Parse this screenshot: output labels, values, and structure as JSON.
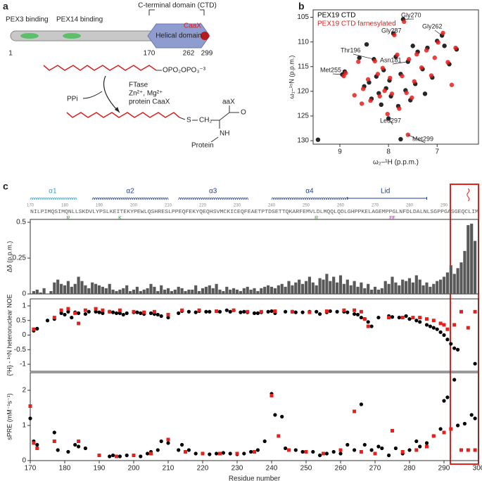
{
  "panel_a": {
    "label": "a",
    "regions": [
      "PEX3 binding",
      "PEX14 binding"
    ],
    "domain": "C-terminal domain (CTD)",
    "helical": "Helical domain",
    "motif": "CaaX",
    "positions": [
      "1",
      "170",
      "262",
      "299"
    ],
    "reaction": {
      "leaving_group": "OPO₂OPO₃⁻³",
      "enzyme": "FTase",
      "cofactors": "Zn²⁺, Mg²⁺",
      "substrate": "protein CaaX",
      "byproduct": "PPi",
      "product_labels": [
        "S",
        "CH₂",
        "aaX",
        "O",
        "NH",
        "Protein"
      ]
    }
  },
  "panel_b": {
    "label": "b"
  },
  "panel_c": {
    "label": "c",
    "elements": [
      "α1",
      "α2",
      "α3",
      "α4",
      "Lid"
    ],
    "sequence": "NILPIMQSIMQNLLSKDVLYPSLKEITEKYPEWLQSHRESLPPEQFEKYQEQHSVMCKICEQFEAETPTDSETTQKARFEMVLDLMQQLQDLGHPPKELAGEMPPGLNFDLDALNLSGPPGASGEQCLIM",
    "seq_ticks": [
      170,
      180,
      190,
      200,
      210,
      220,
      230,
      240,
      250,
      260,
      270,
      280,
      290
    ],
    "mutations": [
      "R",
      "K",
      "R",
      "FF"
    ]
  },
  "chart_data": [
    {
      "type": "scatter",
      "xlabel": "ω₂–¹H (p.p.m.)",
      "ylabel": "ω₁–¹⁵N (p.p.m.)",
      "xlim": [
        9.55,
        6.15
      ],
      "ylim": [
        130.7,
        103.5
      ],
      "xticks": [
        9,
        8,
        7
      ],
      "yticks": [
        105,
        110,
        115,
        120,
        125,
        130
      ],
      "legend": "upper left",
      "annotations": [
        "Gly270",
        "Gly287",
        "Gly262",
        "Thr196",
        "Asn181",
        "Met255",
        "Leu297",
        "Met299"
      ],
      "series": [
        {
          "name": "PEX19 CTD",
          "color": "#000000",
          "marker": "circle",
          "x": [
            9.45,
            8.95,
            8.9,
            8.6,
            8.5,
            8.4,
            8.35,
            8.3,
            8.25,
            8.2,
            8.15,
            8.1,
            8.05,
            8.0,
            7.98,
            7.95,
            7.9,
            7.85,
            7.8,
            7.75,
            7.7,
            7.65,
            7.6,
            7.55,
            7.5,
            7.45,
            7.4,
            7.3,
            7.25,
            7.2,
            7.1,
            7.0,
            6.9,
            6.85,
            6.75,
            6.6,
            7.75,
            8.45
          ],
          "values": [
            129.8,
            116.6,
            116.0,
            113.2,
            119,
            118.2,
            121.5,
            113.5,
            117,
            120.4,
            122.7,
            115.7,
            119.4,
            125.5,
            117.8,
            121,
            108.3,
            113,
            123,
            116.5,
            105.4,
            119.8,
            114,
            121.8,
            110.8,
            118.5,
            112,
            115.5,
            120.5,
            111.2,
            117.2,
            109.8,
            108.7,
            110.8,
            114.5,
            111.5,
            129.7,
            110.5
          ]
        },
        {
          "name": "PEX19 CTD farnesylated",
          "color": "#e8201c",
          "marker": "circle",
          "x": [
            8.92,
            8.88,
            8.62,
            8.52,
            8.42,
            8.37,
            8.28,
            8.22,
            8.18,
            8.12,
            8.08,
            8.02,
            7.97,
            7.93,
            7.88,
            7.82,
            7.78,
            7.72,
            7.68,
            7.63,
            7.58,
            7.52,
            7.47,
            7.42,
            7.32,
            7.22,
            7.12,
            6.98,
            6.88,
            6.78,
            6.62,
            7.6,
            8.55,
            8.7,
            7.05,
            6.7
          ],
          "values": [
            116.9,
            116.3,
            114,
            119.5,
            117.6,
            121.9,
            113.9,
            116.5,
            121,
            115.3,
            119.9,
            124.6,
            117.3,
            120.5,
            108.6,
            112.6,
            123.5,
            116.9,
            105.9,
            120.3,
            113.5,
            121.3,
            118,
            112.5,
            115.2,
            111.7,
            116.8,
            110.1,
            108.2,
            114.1,
            111.2,
            128.8,
            122.5,
            120.8,
            113.2,
            118.7
          ]
        }
      ]
    },
    {
      "type": "bar",
      "ylabel": "Δδ (p.p.m.)",
      "color": "#595959",
      "xlim": [
        170,
        300
      ],
      "ylim": [
        0,
        0.52
      ],
      "yticks": [
        0,
        0.25,
        0.5
      ],
      "x": [
        170,
        171,
        172,
        173,
        174,
        175,
        176,
        177,
        178,
        179,
        180,
        181,
        182,
        183,
        184,
        185,
        186,
        187,
        188,
        189,
        190,
        191,
        192,
        193,
        194,
        195,
        196,
        197,
        198,
        199,
        200,
        201,
        202,
        203,
        204,
        205,
        206,
        207,
        208,
        209,
        210,
        211,
        212,
        213,
        214,
        215,
        216,
        217,
        218,
        219,
        220,
        221,
        222,
        223,
        224,
        225,
        226,
        227,
        228,
        229,
        230,
        231,
        232,
        233,
        234,
        235,
        236,
        237,
        238,
        239,
        240,
        241,
        242,
        243,
        244,
        245,
        246,
        247,
        248,
        249,
        250,
        251,
        252,
        253,
        254,
        255,
        256,
        257,
        258,
        259,
        260,
        261,
        262,
        263,
        264,
        265,
        266,
        267,
        268,
        269,
        270,
        271,
        272,
        273,
        274,
        275,
        276,
        277,
        278,
        279,
        280,
        281,
        282,
        283,
        284,
        285,
        286,
        287,
        288,
        289,
        290,
        291,
        292,
        293,
        294,
        295,
        296,
        297,
        298,
        299
      ],
      "values": [
        0,
        0.02,
        0.03,
        0.01,
        0.04,
        0,
        0.02,
        0.08,
        0.1,
        0.07,
        0.06,
        0.09,
        0.05,
        0.07,
        0.12,
        0.09,
        0.06,
        0.04,
        0.08,
        0.07,
        0.06,
        0.05,
        0.04,
        0.07,
        0.03,
        0.02,
        0.03,
        0.04,
        0.06,
        0.02,
        0.03,
        0.05,
        0.02,
        0.03,
        0.04,
        0.07,
        0.05,
        0.02,
        0.06,
        0.03,
        0.04,
        0.02,
        0.03,
        0.05,
        0.04,
        0.02,
        0.03,
        0.03,
        0.06,
        0.02,
        0.04,
        0.05,
        0.06,
        0.04,
        0.07,
        0.03,
        0.02,
        0.05,
        0.03,
        0.04,
        0.03,
        0.02,
        0.04,
        0.05,
        0.03,
        0.04,
        0.02,
        0.04,
        0.05,
        0.06,
        0.05,
        0.04,
        0.06,
        0.07,
        0.05,
        0.09,
        0.06,
        0.08,
        0.1,
        0.07,
        0.09,
        0.12,
        0.08,
        0.06,
        0.11,
        0.1,
        0.14,
        0.09,
        0.12,
        0.08,
        0.13,
        0.07,
        0.1,
        0.06,
        0.09,
        0.05,
        0.08,
        0.04,
        0.07,
        0.03,
        0.05,
        0.03,
        0.04,
        0.09,
        0.07,
        0.12,
        0.08,
        0.06,
        0.1,
        0.09,
        0.11,
        0.08,
        0.13,
        0.1,
        0.06,
        0.08,
        0.05,
        0.07,
        0.09,
        0.1,
        0.12,
        0.15,
        0.2,
        0.14,
        0.18,
        0.22,
        0.3,
        0.48,
        0.49,
        0.37
      ]
    },
    {
      "type": "scatter",
      "ylabel": "{¹H} - ¹⁵N heteronuclear NOE",
      "xlim": [
        170,
        300
      ],
      "ylim": [
        -1.24,
        1.24
      ],
      "yticks": [
        -1,
        -0.5,
        0,
        0.5,
        1
      ],
      "series": [
        {
          "color": "#000000",
          "marker": "circle",
          "x": [
            171,
            172,
            175,
            177,
            179,
            180,
            181,
            182,
            183,
            184,
            186,
            187,
            189,
            190,
            191,
            193,
            194,
            195,
            196,
            197,
            198,
            200,
            201,
            202,
            203,
            205,
            206,
            207,
            208,
            210,
            213,
            214,
            216,
            218,
            219,
            221,
            222,
            224,
            225,
            227,
            228,
            229,
            231,
            232,
            233,
            235,
            236,
            237,
            239,
            240,
            241,
            244,
            246,
            247,
            249,
            251,
            253,
            254,
            256,
            257,
            259,
            261,
            262,
            264,
            265,
            266,
            267,
            268,
            269,
            271,
            274,
            275,
            277,
            279,
            280,
            282,
            283,
            285,
            286,
            287,
            288,
            289,
            290,
            291,
            292,
            293,
            294,
            299
          ],
          "values": [
            0.15,
            0.22,
            0.5,
            0.55,
            0.75,
            0.7,
            0.8,
            0.6,
            0.78,
            0.75,
            0.72,
            0.8,
            0.8,
            0.78,
            0.75,
            0.8,
            0.78,
            0.75,
            0.75,
            0.7,
            0.75,
            0.78,
            0.78,
            0.75,
            0.72,
            0.75,
            0.72,
            0.7,
            0.65,
            0.6,
            0.75,
            0.82,
            0.8,
            0.78,
            0.82,
            0.8,
            0.8,
            0.82,
            0.8,
            0.85,
            0.8,
            0.85,
            0.78,
            0.8,
            0.78,
            0.75,
            0.75,
            0.78,
            0.8,
            0.82,
            0.75,
            0.8,
            0.8,
            0.78,
            0.78,
            0.8,
            0.8,
            0.72,
            0.78,
            0.82,
            0.8,
            0.8,
            0.78,
            0.72,
            0.7,
            0.6,
            0.55,
            0.45,
            0.3,
            0.6,
            0.65,
            0.62,
            0.6,
            0.65,
            0.55,
            0.5,
            0.45,
            0.35,
            0.3,
            0.25,
            0.2,
            0.1,
            0,
            -0.15,
            -0.3,
            -0.45,
            -0.5,
            -0.98
          ]
        },
        {
          "color": "#e8201c",
          "marker": "square",
          "x": [
            171,
            177,
            179,
            181,
            183,
            184,
            186,
            189,
            191,
            193,
            196,
            200,
            203,
            206,
            210,
            214,
            219,
            224,
            229,
            233,
            237,
            241,
            246,
            251,
            256,
            261,
            264,
            266,
            267,
            268,
            274,
            278,
            281,
            283,
            285,
            287,
            289,
            290,
            291,
            293,
            295,
            297,
            299
          ],
          "values": [
            0.2,
            0.6,
            0.85,
            0.9,
            0.75,
            0.4,
            0.85,
            0.9,
            0.85,
            0.8,
            0.85,
            0.8,
            0.78,
            0.8,
            0.7,
            0.85,
            0.85,
            0.82,
            0.85,
            0.8,
            0.8,
            0.82,
            0.8,
            0.78,
            0.82,
            0.85,
            0.85,
            0.8,
            0.55,
            0.3,
            0.6,
            0.6,
            0.6,
            0.6,
            0.55,
            0.5,
            0.4,
            0.35,
            0.2,
            0.35,
            0.8,
            0.25,
            0.8
          ]
        }
      ]
    },
    {
      "type": "scatter",
      "xlabel": "Residue number",
      "ylabel": "sPRE (mM⁻¹s⁻¹)",
      "xlim": [
        170,
        300
      ],
      "ylim": [
        0,
        2.5
      ],
      "xticks": [
        170,
        180,
        190,
        200,
        210,
        220,
        230,
        240,
        250,
        260,
        270,
        280,
        290,
        300
      ],
      "yticks": [
        0,
        1,
        2
      ],
      "series": [
        {
          "color": "#000000",
          "marker": "circle",
          "x": [
            170,
            171,
            172,
            177,
            178,
            181,
            183,
            184,
            186,
            193,
            194,
            196,
            198,
            200,
            202,
            204,
            205,
            207,
            208,
            210,
            213,
            214,
            216,
            218,
            220,
            222,
            224,
            226,
            228,
            230,
            232,
            234,
            236,
            238,
            240,
            241,
            243,
            244,
            247,
            249,
            252,
            254,
            256,
            258,
            260,
            262,
            264,
            266,
            267,
            269,
            271,
            272,
            274,
            276,
            278,
            280,
            282,
            283,
            285,
            287,
            289,
            290,
            291,
            293,
            294,
            296,
            298,
            299
          ],
          "values": [
            1.2,
            0.55,
            0.45,
            0.8,
            0.3,
            0.25,
            0.45,
            0.4,
            0.35,
            0.12,
            0.15,
            0.12,
            0.15,
            0.15,
            0.12,
            0.2,
            0.25,
            0.3,
            0.55,
            0.5,
            0.3,
            0.45,
            0.3,
            0.2,
            0.2,
            0.18,
            0.2,
            0.22,
            0.2,
            0.18,
            0.2,
            0.25,
            0.3,
            0.55,
            1.9,
            1.3,
            1.25,
            0.35,
            0.3,
            0.25,
            0.25,
            0.15,
            0.2,
            0.25,
            0.2,
            0.45,
            0.3,
            1.6,
            0.45,
            0.3,
            0.4,
            0.35,
            0.15,
            0.35,
            0.2,
            0.3,
            0.55,
            0.4,
            0.5,
            0.7,
            0.9,
            1.7,
            1.8,
            2.3,
            1.0,
            1.05,
            1.3,
            1.2
          ]
        },
        {
          "color": "#e8201c",
          "marker": "square",
          "x": [
            170,
            171,
            172,
            177,
            184,
            190,
            195,
            200,
            205,
            210,
            215,
            220,
            225,
            230,
            235,
            240,
            242,
            245,
            250,
            255,
            260,
            264,
            266,
            270,
            275,
            278,
            282,
            285,
            287,
            290,
            292,
            295,
            297,
            299
          ],
          "values": [
            1.55,
            0.5,
            0.35,
            0.55,
            0.55,
            0.15,
            0.12,
            0.15,
            0.2,
            0.6,
            0.25,
            0.2,
            0.2,
            0.2,
            0.25,
            1.85,
            0.7,
            0.3,
            0.25,
            0.2,
            0.3,
            1.4,
            0.25,
            0.2,
            0.85,
            0.25,
            0.3,
            0.4,
            0.7,
            0.8,
            0.9,
            0.3,
            0.3,
            0.3
          ]
        }
      ]
    }
  ]
}
